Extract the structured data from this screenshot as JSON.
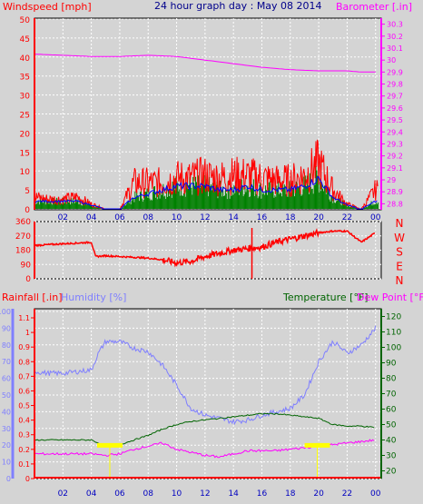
{
  "colors": {
    "background": "#d4d4d4",
    "wind": "#ff0000",
    "gust_green": "#008000",
    "wind_avg": "#0000ff",
    "barometer": "#ff00ff",
    "direction": "#ff0000",
    "axis_blue": "#0000c0",
    "humidity": "#7f7fff",
    "temperature": "#006400",
    "dewpoint": "#ff00ff",
    "rain": "#ff0000",
    "sun_marker": "#ffff00"
  },
  "chart_data": [
    {
      "type": "line",
      "title": "24 hour graph day : May 08 2014",
      "left_axis_label": "Windspeed [mph]",
      "right_axis_label": "Barometer [.in]",
      "x_ticks": [
        "02",
        "04",
        "06",
        "08",
        "10",
        "12",
        "14",
        "16",
        "18",
        "20",
        "22",
        "00"
      ],
      "y_left_ticks": [
        "0",
        "5",
        "10",
        "15",
        "20",
        "25",
        "30",
        "35",
        "40",
        "45",
        "50"
      ],
      "y_left_range": [
        0,
        50
      ],
      "y_right_ticks": [
        "28.8",
        "28.9",
        "29",
        "29.1",
        "29.2",
        "29.3",
        "29.4",
        "29.5",
        "29.6",
        "29.7",
        "29.8",
        "29.9",
        "30",
        "30.1",
        "30.2",
        "30.3"
      ],
      "y_right_range": [
        28.75,
        30.35
      ],
      "grid": true,
      "series": [
        {
          "name": "Windspeed [mph]",
          "axis": "left",
          "style": "gust",
          "x": [
            0,
            1,
            2,
            3,
            4,
            5,
            6,
            7,
            8,
            9,
            10,
            11,
            12,
            13,
            14,
            15,
            16,
            17,
            18,
            19,
            20,
            21,
            22,
            23,
            24
          ],
          "y": [
            5,
            4,
            4,
            5,
            2,
            0,
            0,
            11,
            11,
            11,
            13,
            13,
            14,
            13,
            14,
            14,
            13,
            12,
            12,
            14,
            19,
            8,
            2,
            0,
            8
          ]
        },
        {
          "name": "Wind average",
          "axis": "left",
          "style": "line",
          "x": [
            0,
            1,
            2,
            3,
            4,
            5,
            6,
            7,
            8,
            9,
            10,
            11,
            12,
            13,
            14,
            15,
            16,
            17,
            18,
            19,
            20,
            21,
            22,
            23,
            24
          ],
          "y": [
            2,
            2,
            2,
            2,
            1,
            0,
            0,
            3,
            4,
            5,
            6,
            6,
            6,
            5,
            5,
            6,
            5,
            5,
            5,
            6,
            8,
            3,
            1,
            0,
            2
          ]
        },
        {
          "name": "Barometer [.in]",
          "axis": "right",
          "style": "line",
          "x": [
            0,
            2,
            4,
            6,
            8,
            10,
            12,
            14,
            16,
            18,
            20,
            22,
            23,
            24
          ],
          "y": [
            30.05,
            30.04,
            30.03,
            30.03,
            30.04,
            30.03,
            30.0,
            29.97,
            29.94,
            29.92,
            29.91,
            29.91,
            29.9,
            29.9
          ]
        }
      ]
    },
    {
      "type": "scatter",
      "y_left_ticks": [
        "360",
        "270",
        "180",
        "90",
        "0"
      ],
      "y_range": [
        0,
        360
      ],
      "right_labels": [
        "N",
        "W",
        "S",
        "E",
        "N"
      ],
      "series": [
        {
          "name": "Wind direction",
          "x": [
            0,
            1,
            2,
            3,
            4,
            4.3,
            5,
            6,
            7,
            8,
            9,
            10,
            11,
            12,
            13,
            14,
            15,
            16,
            17,
            18,
            19,
            20,
            21,
            22,
            23,
            24
          ],
          "y": [
            210,
            215,
            220,
            225,
            230,
            140,
            145,
            140,
            135,
            130,
            120,
            100,
            110,
            140,
            160,
            180,
            190,
            200,
            230,
            250,
            270,
            290,
            300,
            300,
            230,
            290
          ]
        }
      ]
    },
    {
      "type": "line",
      "left_axis_label_rain": "Rainfall [.in]",
      "left_axis_label_humidity": "Humidity [%]",
      "right_axis_label_temperature": "Temperature [°F]",
      "right_axis_label_dewpoint": "Dew Point [°F]",
      "x_ticks": [
        "02",
        "04",
        "06",
        "08",
        "10",
        "12",
        "14",
        "16",
        "18",
        "20",
        "22",
        "00"
      ],
      "humidity_ticks": [
        "0",
        "10",
        "20",
        "30",
        "40",
        "50",
        "60",
        "70",
        "80",
        "90",
        "100"
      ],
      "humidity_range": [
        0,
        100
      ],
      "rain_ticks": [
        "0",
        "0.1",
        "0.2",
        "0.3",
        "0.4",
        "0.5",
        "0.6",
        "0.7",
        "0.8",
        "0.9",
        "1",
        "1.1"
      ],
      "rain_range": [
        0,
        1.1
      ],
      "temp_ticks": [
        "20",
        "30",
        "40",
        "50",
        "60",
        "70",
        "80",
        "90",
        "100",
        "110",
        "120"
      ],
      "temp_range": [
        15,
        125
      ],
      "grid": true,
      "series": [
        {
          "name": "Humidity [%]",
          "axis": "humidity",
          "x": [
            0,
            1,
            2,
            3,
            4,
            4.5,
            5,
            6,
            7,
            8,
            9,
            10,
            11,
            12,
            13,
            14,
            15,
            16,
            17,
            18,
            19,
            20,
            21,
            22,
            23,
            24
          ],
          "y": [
            64,
            63,
            63,
            64,
            65,
            75,
            82,
            82,
            78,
            76,
            68,
            56,
            42,
            38,
            36,
            34,
            35,
            38,
            40,
            42,
            50,
            70,
            82,
            75,
            80,
            90
          ]
        },
        {
          "name": "Temperature [°F]",
          "axis": "temp",
          "x": [
            0,
            1,
            2,
            3,
            4,
            5,
            6,
            7,
            8,
            9,
            10,
            11,
            12,
            13,
            14,
            15,
            16,
            17,
            18,
            19,
            20,
            21,
            22,
            23,
            24
          ],
          "y": [
            40,
            40,
            40,
            40,
            40,
            36,
            37,
            40,
            43,
            47,
            50,
            52,
            53,
            54,
            55,
            56,
            57,
            57,
            56,
            55,
            54,
            50,
            49,
            49,
            48
          ]
        },
        {
          "name": "Dew Point [°F]",
          "axis": "temp",
          "x": [
            0,
            1,
            2,
            3,
            4,
            5,
            6,
            7,
            8,
            9,
            10,
            11,
            12,
            13,
            14,
            15,
            16,
            17,
            18,
            19,
            20,
            21,
            22,
            23,
            24
          ],
          "y": [
            31,
            31,
            31,
            31,
            31,
            30,
            31,
            34,
            36,
            38,
            34,
            32,
            30,
            29,
            31,
            33,
            33,
            33,
            34,
            35,
            36,
            37,
            38,
            39,
            40
          ]
        },
        {
          "name": "Rainfall [.in]",
          "axis": "rain",
          "x": [
            0,
            6,
            12,
            18,
            23,
            24
          ],
          "y": [
            0,
            0,
            0,
            0,
            0,
            0
          ]
        }
      ]
    }
  ]
}
